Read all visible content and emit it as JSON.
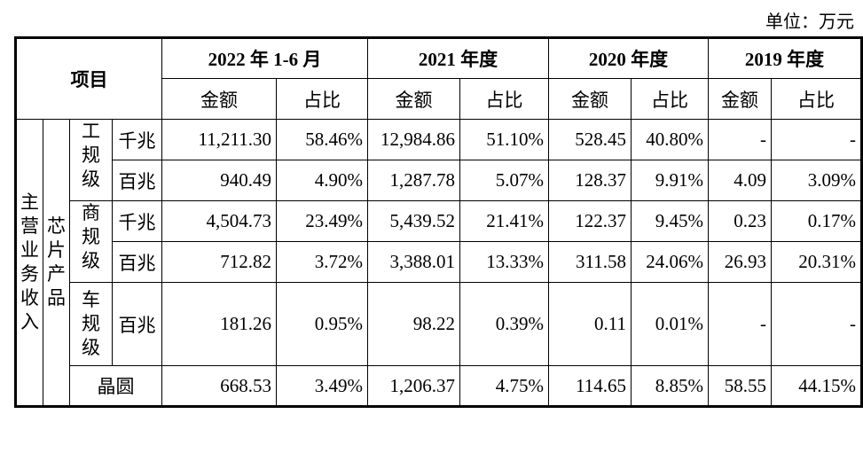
{
  "unit_label": "单位：万元",
  "header": {
    "item": "项目",
    "periods": [
      "2022 年 1-6 月",
      "2021 年度",
      "2020 年度",
      "2019 年度"
    ],
    "amount": "金额",
    "ratio": "占比"
  },
  "group": "主营业务收入",
  "subgroup": "芯片产品",
  "categories": {
    "industrial": "工规级",
    "commercial": "商规级",
    "automotive": "车规级"
  },
  "rows": [
    {
      "label": "千兆",
      "values": [
        "11,211.30",
        "58.46%",
        "12,984.86",
        "51.10%",
        "528.45",
        "40.80%",
        "-",
        "-"
      ]
    },
    {
      "label": "百兆",
      "values": [
        "940.49",
        "4.90%",
        "1,287.78",
        "5.07%",
        "128.37",
        "9.91%",
        "4.09",
        "3.09%"
      ]
    },
    {
      "label": "千兆",
      "values": [
        "4,504.73",
        "23.49%",
        "5,439.52",
        "21.41%",
        "122.37",
        "9.45%",
        "0.23",
        "0.17%"
      ]
    },
    {
      "label": "百兆",
      "values": [
        "712.82",
        "3.72%",
        "3,388.01",
        "13.33%",
        "311.58",
        "24.06%",
        "26.93",
        "20.31%"
      ]
    },
    {
      "label": "百兆",
      "values": [
        "181.26",
        "0.95%",
        "98.22",
        "0.39%",
        "0.11",
        "0.01%",
        "-",
        "-"
      ]
    },
    {
      "label": "晶圆",
      "values": [
        "668.53",
        "3.49%",
        "1,206.37",
        "4.75%",
        "114.65",
        "8.85%",
        "58.55",
        "44.15%"
      ]
    }
  ]
}
